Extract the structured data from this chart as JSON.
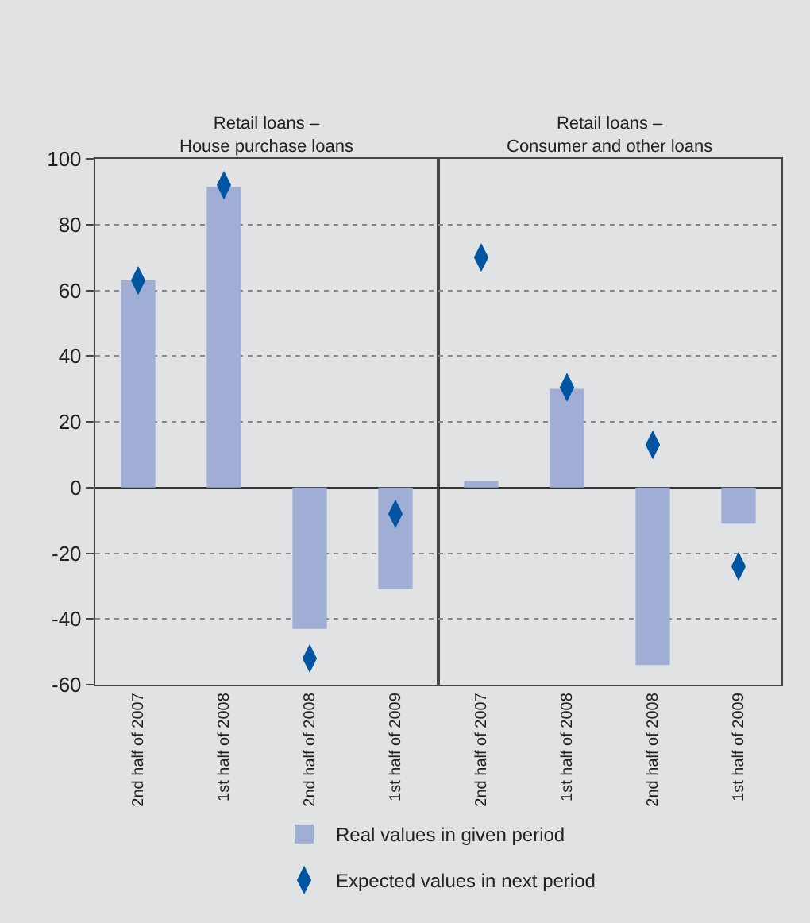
{
  "chart_data": [
    {
      "type": "bar",
      "title": "Retail loans –\nHouse purchase loans",
      "categories": [
        "2nd half of 2007",
        "1st half of 2008",
        "2nd half of 2008",
        "1st half of 2009"
      ],
      "ylim": [
        -60,
        100
      ],
      "yticks": [
        -60,
        -40,
        -20,
        0,
        20,
        40,
        60,
        80,
        100
      ],
      "grid": "y",
      "legend": "bottom",
      "series": [
        {
          "name": "Real values in given period",
          "color": "#a0aed6",
          "values": [
            63,
            91.5,
            -43,
            -31
          ]
        },
        {
          "name": "Expected values in next period",
          "type": "scatter",
          "color": "#0054a0",
          "marker": "diamond",
          "x": [
            "2nd half of 2007",
            "1st half of 2008",
            "2nd half of 2008",
            "1st half of 2009"
          ],
          "values": [
            63,
            92,
            -52,
            -8
          ]
        }
      ]
    },
    {
      "type": "bar",
      "title": "Retail loans –\nConsumer and other loans",
      "categories": [
        "2nd half of 2007",
        "1st half of 2008",
        "2nd half of 2008",
        "1st half of 2009"
      ],
      "ylim": [
        -60,
        100
      ],
      "yticks": [
        -60,
        -40,
        -20,
        0,
        20,
        40,
        60,
        80,
        100
      ],
      "grid": "y",
      "legend": "bottom",
      "tick_labels": "x",
      "series": [
        {
          "name": "Real values in given period",
          "color": "#a0aed6",
          "values": [
            2,
            30,
            -54,
            -11
          ]
        },
        {
          "name": "Expected values in next period",
          "type": "scatter",
          "color": "#0054a0",
          "marker": "diamond",
          "x": [
            "2nd half of 2007",
            "1st half of 2008",
            "2nd half of 2008",
            "1st half of 2009"
          ],
          "values": [
            70,
            30.5,
            13,
            -24
          ]
        }
      ]
    }
  ]
}
